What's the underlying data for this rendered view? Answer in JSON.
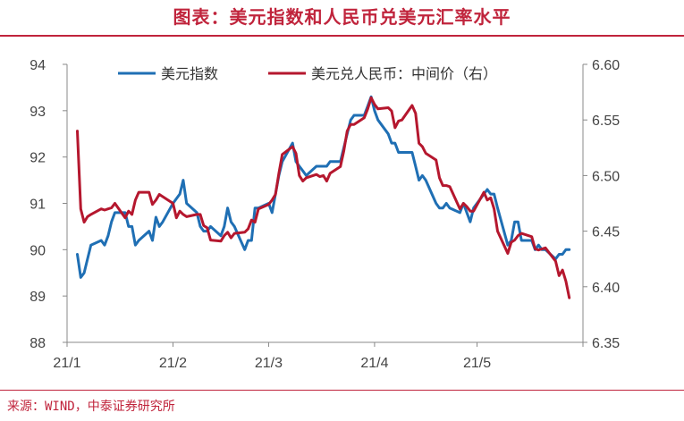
{
  "title": "图表：美元指数和人民币兑美元汇率水平",
  "source": "来源：WIND，中泰证券研究所",
  "chart_data": {
    "type": "line",
    "x_ticks": [
      "21/1",
      "21/2",
      "21/3",
      "21/4",
      "21/5"
    ],
    "x_range": [
      "21/1",
      "21/6"
    ],
    "left_axis": {
      "ylim": [
        88,
        94
      ],
      "ticks": [
        "88",
        "89",
        "90",
        "91",
        "92",
        "93",
        "94"
      ]
    },
    "right_axis": {
      "ylim": [
        6.35,
        6.6
      ],
      "ticks": [
        "6.35",
        "6.40",
        "6.45",
        "6.50",
        "6.55",
        "6.60"
      ]
    },
    "legend_position": "top",
    "grid": false,
    "series": [
      {
        "name": "美元指数",
        "axis": "left",
        "color": "#1f6fb4",
        "x": [
          "2021-01-04",
          "2021-01-05",
          "2021-01-06",
          "2021-01-07",
          "2021-01-08",
          "2021-01-11",
          "2021-01-12",
          "2021-01-13",
          "2021-01-14",
          "2021-01-15",
          "2021-01-18",
          "2021-01-19",
          "2021-01-20",
          "2021-01-21",
          "2021-01-22",
          "2021-01-25",
          "2021-01-26",
          "2021-01-27",
          "2021-01-28",
          "2021-01-29",
          "2021-02-01",
          "2021-02-02",
          "2021-02-03",
          "2021-02-04",
          "2021-02-05",
          "2021-02-08",
          "2021-02-09",
          "2021-02-10",
          "2021-02-11",
          "2021-02-12",
          "2021-02-15",
          "2021-02-16",
          "2021-02-17",
          "2021-02-18",
          "2021-02-19",
          "2021-02-22",
          "2021-02-23",
          "2021-02-24",
          "2021-02-25",
          "2021-02-26",
          "2021-03-01",
          "2021-03-02",
          "2021-03-03",
          "2021-03-04",
          "2021-03-05",
          "2021-03-08",
          "2021-03-09",
          "2021-03-10",
          "2021-03-11",
          "2021-03-12",
          "2021-03-15",
          "2021-03-16",
          "2021-03-17",
          "2021-03-18",
          "2021-03-19",
          "2021-03-22",
          "2021-03-23",
          "2021-03-24",
          "2021-03-25",
          "2021-03-26",
          "2021-03-29",
          "2021-03-30",
          "2021-03-31",
          "2021-04-01",
          "2021-04-02",
          "2021-04-05",
          "2021-04-06",
          "2021-04-07",
          "2021-04-08",
          "2021-04-09",
          "2021-04-12",
          "2021-04-13",
          "2021-04-14",
          "2021-04-15",
          "2021-04-16",
          "2021-04-19",
          "2021-04-20",
          "2021-04-21",
          "2021-04-22",
          "2021-04-23",
          "2021-04-26",
          "2021-04-27",
          "2021-04-28",
          "2021-04-29",
          "2021-04-30",
          "2021-05-03",
          "2021-05-04",
          "2021-05-05",
          "2021-05-06",
          "2021-05-07",
          "2021-05-10",
          "2021-05-11",
          "2021-05-12",
          "2021-05-13",
          "2021-05-14",
          "2021-05-17",
          "2021-05-18",
          "2021-05-19",
          "2021-05-20",
          "2021-05-21",
          "2021-05-24",
          "2021-05-25",
          "2021-05-26",
          "2021-05-27",
          "2021-05-28"
        ],
        "values": [
          89.9,
          89.4,
          89.5,
          89.8,
          90.1,
          90.2,
          90.1,
          90.3,
          90.6,
          90.8,
          90.8,
          90.5,
          90.5,
          90.1,
          90.2,
          90.4,
          90.2,
          90.7,
          90.5,
          90.6,
          91.0,
          91.1,
          91.2,
          91.5,
          91.0,
          90.8,
          90.5,
          90.4,
          90.4,
          90.5,
          90.3,
          90.5,
          90.9,
          90.6,
          90.5,
          90.0,
          90.2,
          90.2,
          90.9,
          90.9,
          91.0,
          90.8,
          91.2,
          91.6,
          91.9,
          92.3,
          91.9,
          91.8,
          91.7,
          91.6,
          91.8,
          91.8,
          91.8,
          91.8,
          91.9,
          91.9,
          92.2,
          92.5,
          92.8,
          92.9,
          92.9,
          93.1,
          93.3,
          93.0,
          92.8,
          92.5,
          92.3,
          92.3,
          92.1,
          92.1,
          92.1,
          91.8,
          91.5,
          91.6,
          91.5,
          91.0,
          90.9,
          90.9,
          91.0,
          90.9,
          90.8,
          91.0,
          90.8,
          90.6,
          90.9,
          91.2,
          91.3,
          91.2,
          91.2,
          90.9,
          90.1,
          90.2,
          90.6,
          90.6,
          90.2,
          90.2,
          90.0,
          90.1,
          90.0,
          90.0,
          89.8,
          89.9,
          89.9,
          90.0,
          90.0
        ]
      },
      {
        "name": "美元兑人民币：中间价（右）",
        "axis": "right",
        "color": "#b5172e",
        "x": [
          "2021-01-04",
          "2021-01-05",
          "2021-01-06",
          "2021-01-07",
          "2021-01-08",
          "2021-01-11",
          "2021-01-12",
          "2021-01-13",
          "2021-01-14",
          "2021-01-15",
          "2021-01-18",
          "2021-01-19",
          "2021-01-20",
          "2021-01-21",
          "2021-01-22",
          "2021-01-25",
          "2021-01-26",
          "2021-01-27",
          "2021-01-28",
          "2021-01-29",
          "2021-02-01",
          "2021-02-02",
          "2021-02-03",
          "2021-02-04",
          "2021-02-05",
          "2021-02-08",
          "2021-02-09",
          "2021-02-10",
          "2021-02-11",
          "2021-02-12",
          "2021-02-15",
          "2021-02-16",
          "2021-02-17",
          "2021-02-18",
          "2021-02-19",
          "2021-02-22",
          "2021-02-23",
          "2021-02-24",
          "2021-02-25",
          "2021-02-26",
          "2021-03-01",
          "2021-03-02",
          "2021-03-03",
          "2021-03-04",
          "2021-03-05",
          "2021-03-08",
          "2021-03-09",
          "2021-03-10",
          "2021-03-11",
          "2021-03-12",
          "2021-03-15",
          "2021-03-16",
          "2021-03-17",
          "2021-03-18",
          "2021-03-19",
          "2021-03-22",
          "2021-03-23",
          "2021-03-24",
          "2021-03-25",
          "2021-03-26",
          "2021-03-29",
          "2021-03-30",
          "2021-03-31",
          "2021-04-01",
          "2021-04-02",
          "2021-04-05",
          "2021-04-06",
          "2021-04-07",
          "2021-04-08",
          "2021-04-09",
          "2021-04-12",
          "2021-04-13",
          "2021-04-14",
          "2021-04-15",
          "2021-04-16",
          "2021-04-19",
          "2021-04-20",
          "2021-04-21",
          "2021-04-22",
          "2021-04-23",
          "2021-04-26",
          "2021-04-27",
          "2021-04-28",
          "2021-04-29",
          "2021-04-30",
          "2021-05-03",
          "2021-05-04",
          "2021-05-05",
          "2021-05-06",
          "2021-05-07",
          "2021-05-10",
          "2021-05-11",
          "2021-05-12",
          "2021-05-13",
          "2021-05-14",
          "2021-05-17",
          "2021-05-18",
          "2021-05-19",
          "2021-05-20",
          "2021-05-21",
          "2021-05-24",
          "2021-05-25",
          "2021-05-26",
          "2021-05-27",
          "2021-05-28"
        ],
        "values": [
          6.54,
          6.47,
          6.458,
          6.463,
          6.465,
          6.47,
          6.469,
          6.47,
          6.471,
          6.475,
          6.462,
          6.468,
          6.465,
          6.478,
          6.485,
          6.485,
          6.474,
          6.478,
          6.483,
          6.481,
          6.475,
          6.462,
          6.468,
          6.465,
          6.463,
          6.465,
          6.465,
          6.455,
          6.453,
          6.442,
          6.441,
          6.446,
          6.449,
          6.444,
          6.448,
          6.449,
          6.452,
          6.46,
          6.458,
          6.47,
          6.474,
          6.478,
          6.483,
          6.502,
          6.519,
          6.526,
          6.52,
          6.5,
          6.495,
          6.498,
          6.501,
          6.499,
          6.5,
          6.495,
          6.502,
          6.508,
          6.522,
          6.54,
          6.546,
          6.546,
          6.552,
          6.56,
          6.57,
          6.564,
          6.56,
          6.561,
          6.558,
          6.543,
          6.549,
          6.55,
          6.563,
          6.556,
          6.529,
          6.526,
          6.52,
          6.514,
          6.498,
          6.491,
          6.491,
          6.49,
          6.47,
          6.475,
          6.472,
          6.468,
          6.468,
          6.485,
          6.478,
          6.48,
          6.47,
          6.45,
          6.43,
          6.44,
          6.442,
          6.446,
          6.448,
          6.445,
          6.434,
          6.433,
          6.434,
          6.435,
          6.423,
          6.41,
          6.415,
          6.405,
          6.39
        ]
      }
    ]
  }
}
